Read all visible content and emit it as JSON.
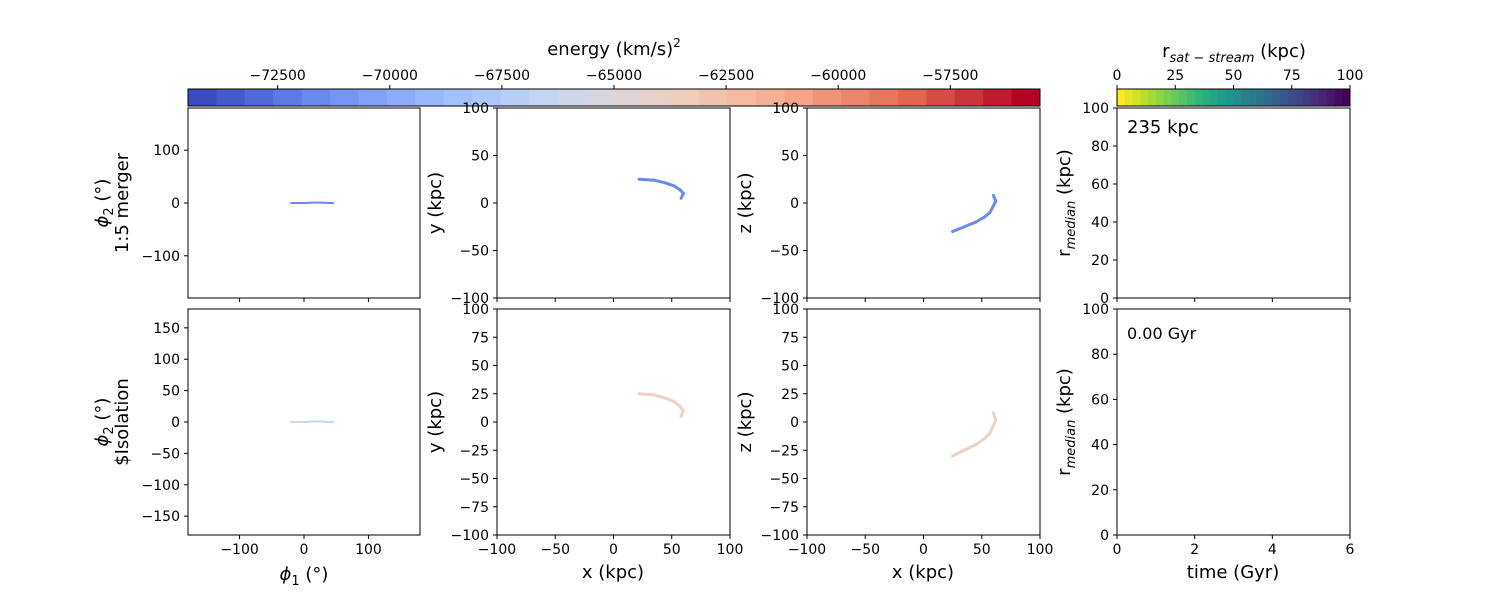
{
  "colorbars": {
    "energy": {
      "label_main": "energy (km/s)",
      "label_sup": "2",
      "range": [
        -74500,
        -55500
      ],
      "ticks": [
        "−72500",
        "−70000",
        "−67500",
        "−65000",
        "−62500",
        "−60000",
        "−57500"
      ],
      "tick_values": [
        -72500,
        -70000,
        -67500,
        -65000,
        -62500,
        -60000,
        -57500
      ],
      "colormap": "coolwarm",
      "colors": [
        "#3b4cc0",
        "#6a8bef",
        "#9abbff",
        "#c9d7f0",
        "#edd1c2",
        "#f7a889",
        "#e26952",
        "#b40426"
      ]
    },
    "rsat": {
      "label_r": "r",
      "label_sub": "sat − stream",
      "label_unit": " (kpc)",
      "range": [
        0,
        100
      ],
      "ticks": [
        "0",
        "25",
        "50",
        "75",
        "100"
      ],
      "tick_values": [
        0,
        25,
        50,
        75,
        100
      ],
      "colormap": "viridis_r",
      "colors": [
        "#fde725",
        "#b5de2b",
        "#6ece58",
        "#35b779",
        "#1f9e89",
        "#26828e",
        "#31688e",
        "#3e4989",
        "#482878",
        "#440154"
      ]
    }
  },
  "row_labels": {
    "top": {
      "phi": "ϕ",
      "sub": "2",
      "unit": " (°)",
      "name": "1:5 merger"
    },
    "bottom": {
      "phi": "ϕ",
      "sub": "2",
      "unit": " (°)",
      "name": "$Isolation"
    }
  },
  "axis_labels": {
    "phi1": {
      "phi": "ϕ",
      "sub": "1",
      "unit": " (°)"
    },
    "x": "x (kpc)",
    "y": "y (kpc)",
    "z": "z (kpc)",
    "time": "time (Gyr)",
    "rmed": {
      "r": "r",
      "sub": "median",
      "unit": " (kpc)"
    }
  },
  "ticks": {
    "phi1": [
      "−100",
      "0",
      "100"
    ],
    "phi1_values": [
      -100,
      0,
      100
    ],
    "phi2_top": [
      "−100",
      "0",
      "100"
    ],
    "phi2_top_values": [
      -100,
      0,
      100
    ],
    "phi2_bottom": [
      "−150",
      "−100",
      "−50",
      "0",
      "50",
      "100",
      "150"
    ],
    "phi2_bottom_values": [
      -150,
      -100,
      -50,
      0,
      50,
      100,
      150
    ],
    "xyz": [
      "−100",
      "−75",
      "−50",
      "−25",
      "0",
      "25",
      "50",
      "75",
      "100"
    ],
    "xyz_values": [
      -100,
      -75,
      -50,
      -25,
      0,
      25,
      50,
      75,
      100
    ],
    "xaxis": [
      "−100",
      "−50",
      "0",
      "50",
      "100"
    ],
    "xaxis_values": [
      -100,
      -50,
      0,
      50,
      100
    ],
    "rmed": [
      "0",
      "20",
      "40",
      "60",
      "80",
      "100"
    ],
    "rmed_values": [
      0,
      20,
      40,
      60,
      80,
      100
    ],
    "time": [
      "0",
      "2",
      "4",
      "6"
    ],
    "time_values": [
      0,
      2,
      4,
      6
    ]
  },
  "annotations": {
    "distance": "235 kpc",
    "time": "0.00 Gyr"
  },
  "chart_data": [
    {
      "type": "scatter",
      "panel": "phi1-phi2 merger",
      "xlim": [
        -180,
        180
      ],
      "ylim": [
        -180,
        180
      ],
      "series": [
        {
          "values_desc": "stream",
          "x": [
            -20,
            0,
            20,
            40,
            45
          ],
          "y": [
            0,
            0,
            1,
            0,
            0
          ],
          "color": "#6a8bef"
        }
      ]
    },
    {
      "type": "scatter",
      "panel": "x-y merger",
      "xlim": [
        -100,
        100
      ],
      "ylim": [
        -100,
        100
      ],
      "series": [
        {
          "x": [
            22,
            35,
            45,
            52,
            57,
            60,
            58
          ],
          "y": [
            25,
            24,
            21,
            18,
            14,
            10,
            5
          ],
          "color": "#6a8bef"
        }
      ]
    },
    {
      "type": "scatter",
      "panel": "x-z merger",
      "xlim": [
        -100,
        100
      ],
      "ylim": [
        -100,
        100
      ],
      "series": [
        {
          "x": [
            25,
            35,
            45,
            52,
            57,
            60,
            62,
            60
          ],
          "y": [
            -30,
            -25,
            -20,
            -15,
            -10,
            -3,
            2,
            8
          ],
          "color": "#6a8bef"
        }
      ]
    },
    {
      "type": "line",
      "panel": "rmedian merger",
      "xlim": [
        0,
        6
      ],
      "ylim": [
        0,
        100
      ],
      "series": []
    },
    {
      "type": "scatter",
      "panel": "phi1-phi2 isolation",
      "xlim": [
        -180,
        180
      ],
      "ylim": [
        -180,
        180
      ],
      "series": [
        {
          "x": [
            -20,
            0,
            20,
            40,
            45
          ],
          "y": [
            0,
            0,
            1,
            0,
            0
          ],
          "color": "#c9d7f0"
        }
      ]
    },
    {
      "type": "scatter",
      "panel": "x-y isolation",
      "xlim": [
        -100,
        100
      ],
      "ylim": [
        -100,
        100
      ],
      "series": [
        {
          "x": [
            22,
            35,
            45,
            52,
            57,
            60,
            58
          ],
          "y": [
            25,
            24,
            21,
            18,
            14,
            10,
            5
          ],
          "color": "#edd1c2"
        }
      ]
    },
    {
      "type": "scatter",
      "panel": "x-z isolation",
      "xlim": [
        -100,
        100
      ],
      "ylim": [
        -100,
        100
      ],
      "series": [
        {
          "x": [
            25,
            35,
            45,
            52,
            57,
            60,
            62,
            60
          ],
          "y": [
            -30,
            -25,
            -20,
            -15,
            -10,
            -3,
            2,
            8
          ],
          "color": "#edd1c2"
        }
      ]
    },
    {
      "type": "line",
      "panel": "rmedian isolation",
      "xlim": [
        0,
        6
      ],
      "ylim": [
        0,
        100
      ],
      "series": []
    }
  ]
}
